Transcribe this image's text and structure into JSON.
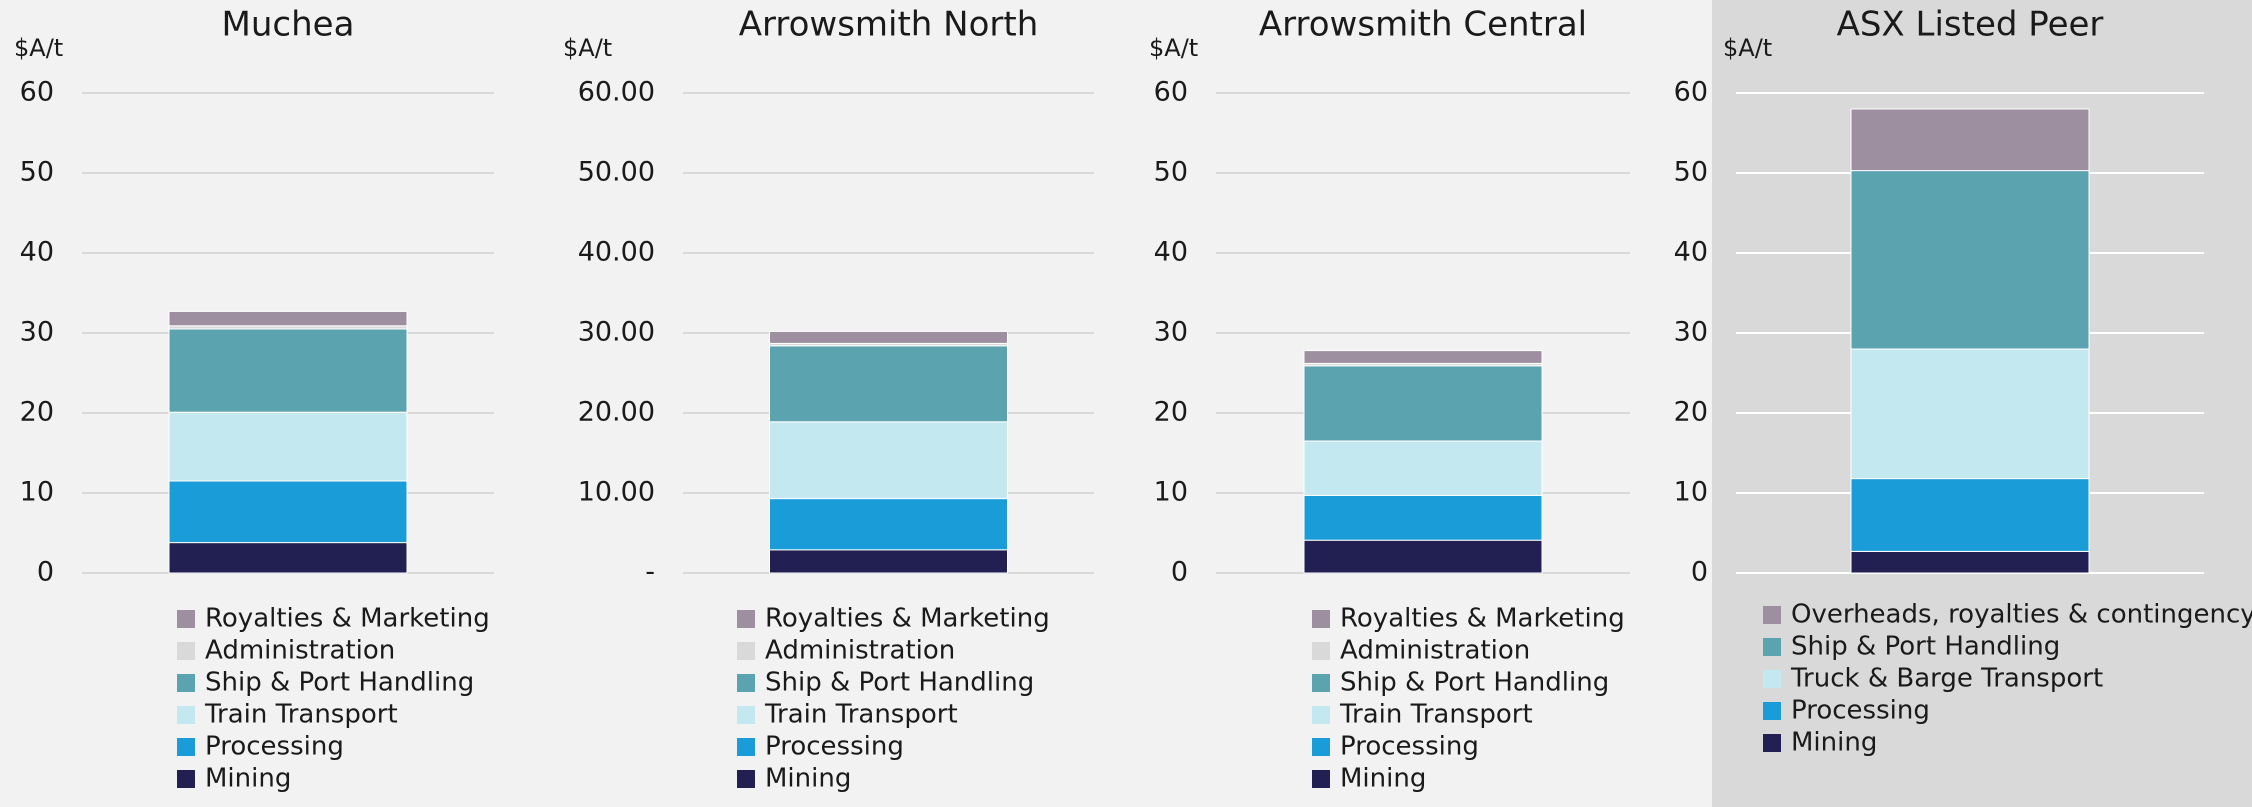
{
  "chart_data": [
    {
      "type": "bar",
      "title": "Muchea",
      "y_label": "$A/t",
      "ylim": [
        0,
        60
      ],
      "yticks": [
        0,
        10,
        20,
        30,
        40,
        50,
        60
      ],
      "grid": true,
      "grid_color": "#d9d9d9",
      "background": "#f2f2f2",
      "series": [
        {
          "name": "Mining",
          "color": "#221f52",
          "values": [
            3.8
          ]
        },
        {
          "name": "Processing",
          "color": "#1a9cd9",
          "values": [
            7.7
          ]
        },
        {
          "name": "Train Transport",
          "color": "#c3e8f0",
          "values": [
            8.6
          ]
        },
        {
          "name": "Ship & Port Handling",
          "color": "#5ba3ae",
          "values": [
            10.4
          ]
        },
        {
          "name": "Administration",
          "color": "#d9d9d9",
          "values": [
            0.4
          ]
        },
        {
          "name": "Royalties & Marketing",
          "color": "#9e8fa0",
          "values": [
            1.8
          ]
        }
      ]
    },
    {
      "type": "bar",
      "title": "Arrowsmith North",
      "y_label": "$A/t",
      "ylim": [
        0,
        60
      ],
      "yticks": [
        {
          "value": 0,
          "label": "-"
        },
        {
          "value": 10,
          "label": "10.00"
        },
        {
          "value": 20,
          "label": "20.00"
        },
        {
          "value": 30,
          "label": "30.00"
        },
        {
          "value": 40,
          "label": "40.00"
        },
        {
          "value": 50,
          "label": "50.00"
        },
        {
          "value": 60,
          "label": "60.00"
        }
      ],
      "grid": true,
      "grid_color": "#d9d9d9",
      "background": "#f2f2f2",
      "series": [
        {
          "name": "Mining",
          "color": "#221f52",
          "values": [
            2.9
          ]
        },
        {
          "name": "Processing",
          "color": "#1a9cd9",
          "values": [
            6.4
          ]
        },
        {
          "name": "Train Transport",
          "color": "#c3e8f0",
          "values": [
            9.6
          ]
        },
        {
          "name": "Ship & Port Handling",
          "color": "#5ba3ae",
          "values": [
            9.5
          ]
        },
        {
          "name": "Administration",
          "color": "#d9d9d9",
          "values": [
            0.3
          ]
        },
        {
          "name": "Royalties & Marketing",
          "color": "#9e8fa0",
          "values": [
            1.5
          ]
        }
      ]
    },
    {
      "type": "bar",
      "title": "Arrowsmith Central",
      "y_label": "$A/t",
      "ylim": [
        0,
        60
      ],
      "yticks": [
        0,
        10,
        20,
        30,
        40,
        50,
        60
      ],
      "grid": true,
      "grid_color": "#d9d9d9",
      "background": "#f2f2f2",
      "series": [
        {
          "name": "Mining",
          "color": "#221f52",
          "values": [
            4.1
          ]
        },
        {
          "name": "Processing",
          "color": "#1a9cd9",
          "values": [
            5.6
          ]
        },
        {
          "name": "Train Transport",
          "color": "#c3e8f0",
          "values": [
            6.8
          ]
        },
        {
          "name": "Ship & Port Handling",
          "color": "#5ba3ae",
          "values": [
            9.4
          ]
        },
        {
          "name": "Administration",
          "color": "#d9d9d9",
          "values": [
            0.3
          ]
        },
        {
          "name": "Royalties & Marketing",
          "color": "#9e8fa0",
          "values": [
            1.6
          ]
        }
      ]
    },
    {
      "type": "bar",
      "title": "ASX Listed Peer",
      "y_label": "$A/t",
      "ylim": [
        0,
        60
      ],
      "yticks": [
        0,
        10,
        20,
        30,
        40,
        50,
        60
      ],
      "grid": true,
      "grid_color": "#ffffff",
      "background": "#d9d9d9",
      "series": [
        {
          "name": "Mining",
          "color": "#221f52",
          "values": [
            2.7
          ]
        },
        {
          "name": "Processing",
          "color": "#1a9cd9",
          "values": [
            9.1
          ]
        },
        {
          "name": "Truck & Barge Transport",
          "color": "#c3e8f0",
          "values": [
            16.2
          ]
        },
        {
          "name": "Ship & Port Handling",
          "color": "#5ba3ae",
          "values": [
            22.3
          ]
        },
        {
          "name": "Overheads, royalties & contingency",
          "color": "#9e8fa0",
          "values": [
            7.7
          ]
        }
      ]
    }
  ]
}
